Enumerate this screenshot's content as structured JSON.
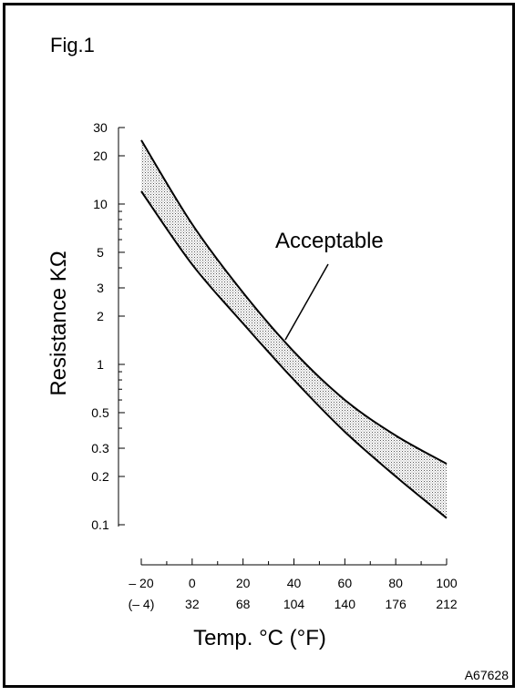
{
  "figure_label": "Fig.1",
  "figure_code": "A67628",
  "chart_data": {
    "type": "area",
    "xlabel": "Temp. °C (°F)",
    "ylabel": "Resistance KΩ",
    "x_ticks_c": [
      "– 20",
      "0",
      "20",
      "40",
      "60",
      "80",
      "100"
    ],
    "x_ticks_f": [
      "(– 4)",
      "32",
      "68",
      "104",
      "140",
      "176",
      "212"
    ],
    "y_tick_labels": [
      {
        "v": 0.1,
        "label": "0.1"
      },
      {
        "v": 0.2,
        "label": "0.2"
      },
      {
        "v": 0.3,
        "label": "0.3"
      },
      {
        "v": 0.5,
        "label": "0.5"
      },
      {
        "v": 1,
        "label": "1"
      },
      {
        "v": 2,
        "label": "2"
      },
      {
        "v": 3,
        "label": "3"
      },
      {
        "v": 5,
        "label": "5"
      },
      {
        "v": 10,
        "label": "10"
      },
      {
        "v": 20,
        "label": "20"
      },
      {
        "v": 30,
        "label": "30"
      }
    ],
    "y_scale": "log",
    "ylim": [
      0.1,
      30
    ],
    "xlim": [
      -20,
      100
    ],
    "band_label": "Acceptable",
    "upper": {
      "x": [
        -20,
        0,
        20,
        40,
        60,
        80,
        100
      ],
      "y": [
        25,
        7.5,
        2.8,
        1.2,
        0.6,
        0.36,
        0.24
      ]
    },
    "lower": {
      "x": [
        -20,
        0,
        20,
        40,
        60,
        80,
        100
      ],
      "y": [
        12,
        4.2,
        1.8,
        0.8,
        0.38,
        0.2,
        0.11
      ]
    }
  }
}
